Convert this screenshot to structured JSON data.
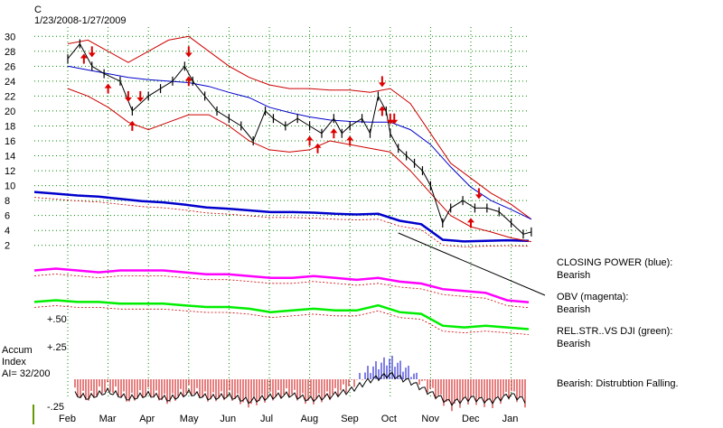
{
  "chart_data": {
    "type": "line",
    "title": "C",
    "subtitle": "1/23/2008-1/27/2009",
    "price_axis": {
      "ticks": [
        "30",
        "28",
        "26",
        "24",
        "22",
        "20",
        "18",
        "16",
        "14",
        "12",
        "10",
        "8",
        "6",
        "4",
        "2"
      ],
      "range": [
        1,
        31
      ]
    },
    "months": [
      "Feb",
      "Mar",
      "Apr",
      "May",
      "Jun",
      "Jul",
      "Aug",
      "Sep",
      "Oct",
      "Nov",
      "Dec",
      "Jan"
    ],
    "price_series": {
      "name": "",
      "x_month": [
        0,
        0.3,
        0.6,
        0.9,
        1.3,
        1.6,
        2.0,
        2.3,
        2.6,
        2.9,
        3.1,
        3.4,
        3.7,
        4.0,
        4.3,
        4.6,
        4.9,
        5.1,
        5.4,
        5.7,
        6.0,
        6.3,
        6.6,
        6.8,
        7.0,
        7.3,
        7.5,
        7.7,
        7.9,
        8.0,
        8.2,
        8.4,
        8.6,
        8.8,
        9.0,
        9.3,
        9.5,
        9.8,
        10.1,
        10.4,
        10.7,
        11.0,
        11.3,
        11.5
      ],
      "close": [
        27,
        29,
        26,
        25,
        24,
        20,
        22,
        23,
        24,
        26,
        24,
        22,
        20,
        19,
        18,
        16,
        20,
        19,
        18,
        19,
        18,
        17,
        19,
        17,
        18,
        19,
        17,
        22,
        20,
        17,
        15,
        14,
        13,
        12,
        10,
        5,
        7,
        8,
        7,
        7,
        6.5,
        5,
        3.5,
        3.8
      ]
    },
    "upper_band": {
      "name": "",
      "x_month": [
        0,
        0.5,
        1,
        1.5,
        2,
        2.5,
        3,
        3.5,
        4,
        4.5,
        5,
        5.5,
        6,
        6.5,
        7,
        7.5,
        8,
        8.5,
        9,
        9.5,
        10,
        10.5,
        11,
        11.5
      ],
      "values": [
        29,
        29.5,
        28,
        26.5,
        28,
        29.5,
        30,
        28,
        26,
        24.5,
        23.5,
        23,
        23,
        22.8,
        22.8,
        22.5,
        23,
        21,
        17,
        13,
        11,
        9,
        7.5,
        5.5
      ]
    },
    "lower_band": {
      "name": "",
      "x_month": [
        0,
        0.5,
        1,
        1.5,
        2,
        2.5,
        3,
        3.5,
        4,
        4.5,
        5,
        5.5,
        6,
        6.5,
        7,
        7.5,
        8,
        8.5,
        9,
        9.5,
        10,
        10.5,
        11,
        11.5
      ],
      "values": [
        23,
        22,
        20.5,
        18.5,
        17.5,
        18.5,
        19.5,
        19.5,
        18,
        16,
        14.8,
        14.5,
        14.8,
        16,
        15.5,
        15,
        14.5,
        12,
        9,
        6,
        4.5,
        3.8,
        3,
        2.5
      ]
    },
    "moving_average": {
      "name": "",
      "x_month": [
        0,
        0.5,
        1,
        1.5,
        2,
        2.5,
        3,
        3.5,
        4,
        4.5,
        5,
        5.5,
        6,
        6.5,
        7,
        7.5,
        8,
        8.5,
        9,
        9.5,
        10,
        10.5,
        11,
        11.5
      ],
      "values": [
        26,
        25.5,
        25,
        24.5,
        24.2,
        24,
        23.8,
        23.3,
        22.5,
        21.8,
        20.5,
        19.8,
        19.2,
        18.8,
        18.6,
        18.5,
        18.5,
        17.5,
        15.5,
        12.5,
        9.8,
        8,
        6.8,
        5.5
      ]
    },
    "red_down_arrows_x_month": [
      0.6,
      1.5,
      1.8,
      3.0,
      7.8,
      8.0,
      8.1,
      10.2
    ],
    "red_up_arrows_x_month": [
      0.4,
      1.0,
      1.6,
      3.0,
      6.0,
      6.2,
      6.6,
      7.0,
      7.8,
      10.0
    ],
    "indicators": [
      {
        "label": "CLOSING POWER (blue):",
        "status": "Bearish",
        "color": "#0000cc",
        "values": [
          8.8,
          8.5,
          8.2,
          8.0,
          7.6,
          7.2,
          7.0,
          6.6,
          6.1,
          5.9,
          5.6,
          5.3,
          5.3,
          5.2,
          5.0,
          4.9,
          5.0,
          3.8,
          3.2,
          0.5,
          0.2,
          0.3,
          0.4,
          0.3
        ]
      },
      {
        "label": "OBV (magenta):",
        "status": "Bearish",
        "color": "#ff00ff",
        "values": [
          1.2,
          1.3,
          1.2,
          1.1,
          1.2,
          1.2,
          1.2,
          1.1,
          1.0,
          1.0,
          0.9,
          0.8,
          0.8,
          0.9,
          0.8,
          0.7,
          0.8,
          0.6,
          0.5,
          0.2,
          0.1,
          0.0,
          -0.4,
          -0.5
        ]
      },
      {
        "label": "REL.STR..VS DJI (green):",
        "status": "Bearish",
        "color": "#00ee00",
        "values": [
          2.0,
          2.1,
          2.0,
          2.0,
          1.9,
          1.9,
          1.9,
          1.8,
          1.7,
          1.7,
          1.6,
          1.4,
          1.5,
          1.6,
          1.5,
          1.5,
          1.8,
          1.4,
          1.3,
          0.6,
          0.5,
          0.6,
          0.5,
          0.4
        ]
      }
    ],
    "accum_index": {
      "title_lines": [
        "Accum",
        "Index",
        "AI= 32/200"
      ],
      "ticks": [
        "+.50",
        "+.25",
        "-.25"
      ],
      "status": "Bearish: Distrubtion Falling.",
      "x_month": [
        0,
        0.5,
        1,
        1.5,
        2,
        2.5,
        3,
        3.5,
        4,
        4.5,
        5,
        5.5,
        6,
        6.5,
        7,
        7.5,
        8,
        8.5,
        9,
        9.5,
        10,
        10.5,
        11,
        11.5
      ],
      "values": [
        -0.08,
        -0.14,
        -0.06,
        -0.15,
        -0.1,
        -0.16,
        -0.08,
        -0.14,
        -0.12,
        -0.18,
        -0.13,
        -0.1,
        -0.16,
        -0.12,
        -0.05,
        0.08,
        0.15,
        0.06,
        -0.08,
        -0.2,
        -0.14,
        -0.18,
        -0.1,
        -0.2
      ]
    },
    "grid": true
  },
  "colors": {
    "band": "#cc0000",
    "moving_average": "#0000cc",
    "arrows": "#dd0000",
    "price_bars": "#000000",
    "accum_positive": "#0000cc",
    "accum_negative": "#cc0000"
  }
}
